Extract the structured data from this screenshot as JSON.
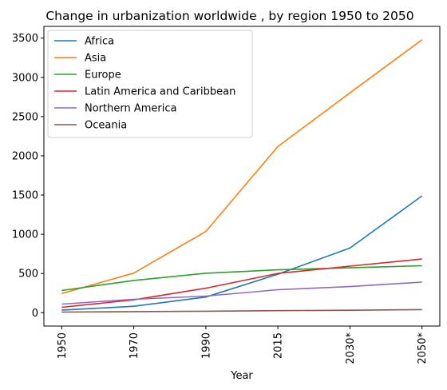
{
  "chart_data": {
    "type": "line",
    "title": "Change in urbanization worldwide , by region 1950 to 2050",
    "xlabel": "Year",
    "ylabel": "",
    "categories": [
      "1950",
      "1970",
      "1990",
      "2015",
      "2030*",
      "2050*"
    ],
    "ylim": [
      -170,
      3650
    ],
    "yticks": [
      0,
      500,
      1000,
      1500,
      2000,
      2500,
      3000,
      3500
    ],
    "grid": false,
    "legend_position": "top-left",
    "series": [
      {
        "name": "Africa",
        "color": "#1f77b4",
        "values": [
          33,
          83,
          200,
          491,
          824,
          1489
        ]
      },
      {
        "name": "Asia",
        "color": "#ff7f0e",
        "values": [
          245,
          505,
          1036,
          2118,
          2802,
          3479
        ]
      },
      {
        "name": "Europe",
        "color": "#2ca02c",
        "values": [
          283,
          412,
          503,
          547,
          573,
          599
        ]
      },
      {
        "name": "Latin America and Caribbean",
        "color": "#d62728",
        "values": [
          69,
          164,
          313,
          501,
          594,
          685
        ]
      },
      {
        "name": "Northern America",
        "color": "#9467bd",
        "values": [
          110,
          171,
          212,
          293,
          333,
          390
        ]
      },
      {
        "name": "Oceania",
        "color": "#8c564b",
        "values": [
          8,
          14,
          19,
          27,
          32,
          40
        ]
      }
    ]
  }
}
